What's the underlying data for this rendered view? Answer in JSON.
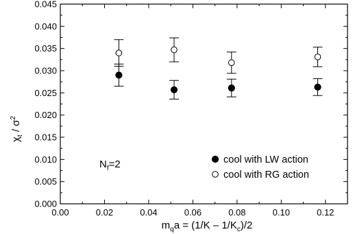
{
  "chart_data": {
    "type": "scatter",
    "xlabel": {
      "main": "m",
      "sub_q": "q",
      "rest": "a = (1/K – 1/K",
      "sub_c": "c",
      "end": ")/2"
    },
    "ylabel": {
      "chi": "χ",
      "sub_t": "t",
      "slash": " / σ",
      "sup": "2"
    },
    "xlim": [
      0.0,
      0.13
    ],
    "ylim": [
      0.0,
      0.045
    ],
    "x_ticks": [
      0.0,
      0.02,
      0.04,
      0.06,
      0.08,
      0.1,
      0.12
    ],
    "x_tick_labels": [
      "0.00",
      "0.02",
      "0.04",
      "0.06",
      "0.08",
      "0.10",
      "0.12"
    ],
    "y_ticks": [
      0.0,
      0.005,
      0.01,
      0.015,
      0.02,
      0.025,
      0.03,
      0.035,
      0.04,
      0.045
    ],
    "y_tick_labels": [
      "0.000",
      "0.005",
      "0.010",
      "0.015",
      "0.020",
      "0.025",
      "0.030",
      "0.035",
      "0.040",
      "0.045"
    ],
    "grid": false,
    "legend_position": "bottom-right",
    "annotation": {
      "main": "N",
      "sub": "f",
      "rest": "=2"
    },
    "series": [
      {
        "name": "cool with LW action",
        "marker": "filled-circle",
        "color": "#000000",
        "x": [
          0.0265,
          0.0515,
          0.0775,
          0.1165
        ],
        "y": [
          0.029,
          0.0257,
          0.0261,
          0.0263
        ],
        "err": [
          0.0025,
          0.0021,
          0.002,
          0.0019
        ]
      },
      {
        "name": "cool with RG action",
        "marker": "open-circle",
        "color": "#000000",
        "x": [
          0.0265,
          0.0515,
          0.0775,
          0.1165
        ],
        "y": [
          0.034,
          0.0347,
          0.0318,
          0.0331
        ],
        "err": [
          0.003,
          0.0027,
          0.0024,
          0.0022
        ]
      }
    ]
  }
}
